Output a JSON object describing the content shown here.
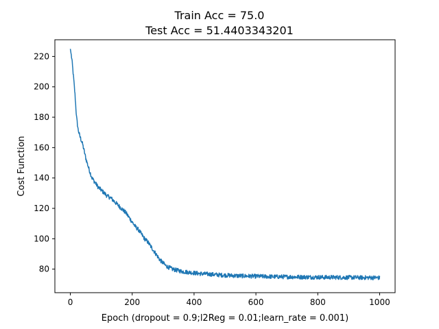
{
  "chart_data": {
    "type": "line",
    "title_lines": [
      "Train Acc = 75.0",
      "Test Acc = 51.4403343201"
    ],
    "xlabel": "Epoch (dropout = 0.9;l2Reg = 0.01;learn_rate = 0.001)",
    "ylabel": "Cost Function",
    "xlim": [
      -50,
      1050
    ],
    "ylim": [
      64.5,
      231
    ],
    "x_ticks": [
      0,
      200,
      400,
      600,
      800,
      1000
    ],
    "y_ticks": [
      80,
      100,
      120,
      140,
      160,
      180,
      200,
      220
    ],
    "grid": false,
    "series": [
      {
        "color": "#1f77b4",
        "points_x": [
          0,
          5,
          10,
          15,
          20,
          25,
          30,
          40,
          50,
          60,
          70,
          80,
          90,
          100,
          110,
          120,
          130,
          140,
          150,
          160,
          170,
          180,
          190,
          200,
          210,
          220,
          230,
          240,
          250,
          260,
          270,
          280,
          290,
          300,
          310,
          320,
          330,
          340,
          350,
          360,
          380,
          400,
          420,
          440,
          460,
          480,
          500,
          520,
          540,
          560,
          580,
          600,
          620,
          640,
          660,
          680,
          700,
          720,
          740,
          760,
          780,
          800,
          820,
          840,
          860,
          880,
          900,
          920,
          940,
          960,
          980,
          1000
        ],
        "points_y": [
          225,
          218,
          207,
          195,
          180,
          172,
          168,
          162,
          153,
          146,
          140,
          137,
          134,
          132,
          130,
          128,
          127,
          125,
          123,
          121,
          119,
          117,
          114,
          111,
          108,
          106,
          103,
          100,
          98,
          95,
          92,
          89,
          86,
          84,
          82,
          81,
          80,
          79.5,
          79,
          78.5,
          78,
          77.5,
          77,
          76.8,
          76.5,
          76.2,
          76,
          75.8,
          75.6,
          75.5,
          75.4,
          75.3,
          75.2,
          75.1,
          75,
          75,
          74.9,
          74.9,
          74.8,
          74.8,
          74.7,
          74.7,
          74.6,
          74.6,
          74.6,
          74.5,
          74.5,
          74.5,
          74.4,
          74.4,
          74.4,
          74.3
        ],
        "noise_amplitude": 1.4
      }
    ]
  }
}
